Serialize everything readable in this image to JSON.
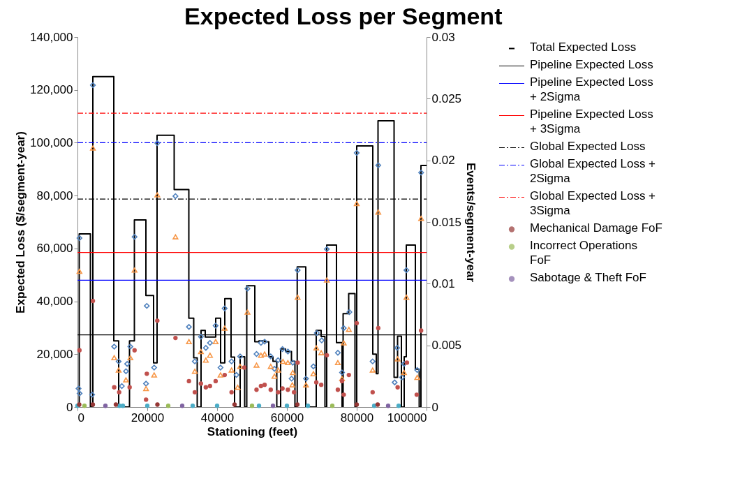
{
  "chart_data": {
    "type": "step",
    "title": "Expected Loss per Segment",
    "xlabel": "Stationing (feet)",
    "ylabel": "Expected Loss ($/segment-year)",
    "y2label": "Events/segment-year",
    "xlim": [
      0,
      100000
    ],
    "xticks": [
      0,
      20000,
      40000,
      60000,
      80000,
      100000
    ],
    "ylim": [
      0,
      140000
    ],
    "yticks": [
      0,
      {
        "value": 20000,
        "label": "20,000"
      },
      {
        "value": 40000,
        "label": "40,000"
      },
      {
        "value": 60000,
        "label": "60,000"
      },
      {
        "value": 80000,
        "label": "80,000"
      },
      {
        "value": 100000,
        "label": "100,000"
      },
      {
        "value": 120000,
        "label": "120,000"
      },
      {
        "value": 140000,
        "label": "140,000"
      }
    ],
    "y2lim": [
      0,
      0.03
    ],
    "y2ticks": [
      0,
      0.005,
      0.01,
      0.015,
      0.02,
      0.025,
      0.03
    ],
    "legend": "right",
    "series": [
      {
        "name": "Total Expected Loss",
        "color": "#000000",
        "x": [
          0,
          500,
          3700,
          4400,
          10400,
          11800,
          14900,
          16300,
          19600,
          21800,
          22800,
          27700,
          31900,
          33300,
          34300,
          35400,
          36600,
          39600,
          41000,
          42200,
          44000,
          45000,
          46600,
          47900,
          48500,
          50800,
          52000,
          53600,
          54800,
          56000,
          57100,
          58200,
          59600,
          61300,
          62300,
          62950,
          65400,
          68400,
          69800,
          70900,
          71400,
          74200,
          75800,
          76100,
          77700,
          79500,
          80000,
          84600,
          85600,
          86100,
          90700,
          91700,
          92800,
          93600,
          94200,
          96800,
          97900,
          98400,
          100000
        ],
        "values": [
          0,
          65500,
          0,
          125000,
          25000,
          0,
          25000,
          70800,
          42200,
          16700,
          102800,
          82300,
          33600,
          18600,
          0,
          29000,
          26500,
          33600,
          16700,
          41000,
          18900,
          0,
          19000,
          0,
          45900,
          24700,
          25000,
          24700,
          19000,
          17300,
          0,
          22000,
          21000,
          17300,
          0,
          53000,
          0,
          29000,
          26700,
          0,
          61300,
          24400,
          0,
          35300,
          42900,
          0,
          98800,
          20000,
          12600,
          108300,
          11200,
          26800,
          0,
          19000,
          61300,
          14300,
          0,
          91400,
          91400
        ]
      },
      {
        "name": "Pipeline Expected Loss",
        "type": "line",
        "color": "#000000",
        "line_style": "solid",
        "x": [
          0,
          100000
        ],
        "values": [
          27300,
          27300
        ]
      },
      {
        "name": "Pipeline Expected Loss + 2Sigma",
        "type": "line",
        "color": "#0000ff",
        "line_style": "solid",
        "x": [
          0,
          100000
        ],
        "values": [
          48000,
          48000
        ]
      },
      {
        "name": "Pipeline Expected Loss + 3Sigma",
        "type": "line",
        "color": "#ff0000",
        "line_style": "solid",
        "x": [
          0,
          100000
        ],
        "values": [
          58500,
          58500
        ]
      },
      {
        "name": "Global Expected Loss",
        "type": "line",
        "color": "#000000",
        "line_style": "dashed",
        "x": [
          0,
          100000
        ],
        "values": [
          78700,
          78700
        ]
      },
      {
        "name": "Global Expected Loss + 2Sigma",
        "type": "line",
        "color": "#0000ff",
        "line_style": "dashed",
        "x": [
          0,
          100000
        ],
        "values": [
          100000,
          100000
        ]
      },
      {
        "name": "Global Expected Loss + 3Sigma",
        "type": "line",
        "color": "#ff0000",
        "line_style": "dashed",
        "x": [
          0,
          100000
        ],
        "values": [
          111200,
          111200
        ]
      },
      {
        "type": "scatter",
        "axis": "y2",
        "marker": "circle",
        "color": "#4bacc6",
        "x": [
          0,
          12000,
          13000,
          20000,
          33000,
          40000,
          52000,
          60000,
          66000,
          85000,
          92000
        ],
        "values": [
          0.0001,
          0.0001,
          0.0001,
          0.0001,
          0.0001,
          0.0001,
          0.0001,
          0.0001,
          0.0001,
          0.0001,
          0.0001
        ]
      },
      {
        "type": "scatter",
        "axis": "y2",
        "marker": "diamond",
        "color": "#4f81bd",
        "x": [
          300,
          600,
          4200,
          560,
          4420,
          10520,
          11790,
          12700,
          13890,
          14240,
          15150,
          16350,
          19640,
          19860,
          21960,
          22870,
          28070,
          31930,
          33610,
          35360,
          36770,
          37960,
          39580,
          40980,
          42170,
          44140,
          45540,
          46590,
          48700,
          51290,
          52560,
          53610,
          55360,
          56420,
          57470,
          58730,
          60280,
          61330,
          61680,
          63080,
          65470,
          67580,
          68560,
          69960,
          71440,
          74590,
          75790,
          76280,
          77890,
          80000,
          84560,
          86170,
          90870,
          91580,
          92980,
          93540,
          94240,
          97330,
          98450
        ],
        "values": [
          0.0015,
          0.0011,
          0.001,
          0.0137,
          0.0261,
          0.0049,
          0.0037,
          0.0017,
          0.0029,
          0.0035,
          0.0049,
          0.0138,
          0.0019,
          0.0082,
          0.0032,
          0.0214,
          0.0171,
          0.0065,
          0.0037,
          0.0057,
          0.0048,
          0.0052,
          0.0066,
          0.0032,
          0.008,
          0.0037,
          0.0026,
          0.0041,
          0.0096,
          0.0043,
          0.0052,
          0.0053,
          0.0041,
          0.0031,
          0.0038,
          0.0047,
          0.0045,
          0.0023,
          0.0036,
          0.0111,
          0.0023,
          0.0033,
          0.006,
          0.0054,
          0.0128,
          0.0044,
          0.0028,
          0.0064,
          0.0077,
          0.0206,
          0.0037,
          0.0196,
          0.002,
          0.0048,
          0.0024,
          0.0035,
          0.0111,
          0.003,
          0.019
        ]
      },
      {
        "type": "scatter",
        "axis": "y2",
        "marker": "triangle",
        "color": "#f79646",
        "x": [
          560,
          4420,
          10520,
          11790,
          13890,
          15150,
          16350,
          19640,
          21960,
          22870,
          28070,
          31930,
          33610,
          35360,
          36770,
          37960,
          39580,
          40980,
          42170,
          44140,
          45890,
          46590,
          48700,
          51290,
          52560,
          53610,
          55360,
          56420,
          57470,
          58880,
          60280,
          61540,
          61680,
          63080,
          65470,
          67580,
          68420,
          69820,
          71440,
          74590,
          75790,
          76280,
          77750,
          80000,
          84560,
          86170,
          91720,
          93540,
          94240,
          97330,
          98450
        ],
        "values": [
          0.011,
          0.021,
          0.004,
          0.003,
          0.0022,
          0.004,
          0.0111,
          0.0015,
          0.0026,
          0.0172,
          0.0138,
          0.0053,
          0.0029,
          0.0045,
          0.0038,
          0.0042,
          0.0053,
          0.0026,
          0.0064,
          0.003,
          0.0016,
          0.0033,
          0.0077,
          0.0034,
          0.0042,
          0.0043,
          0.0033,
          0.0025,
          0.003,
          0.0037,
          0.0036,
          0.0018,
          0.0028,
          0.0089,
          0.0018,
          0.0027,
          0.0048,
          0.0044,
          0.0103,
          0.0036,
          0.0023,
          0.0052,
          0.0063,
          0.0165,
          0.003,
          0.0158,
          0.0039,
          0.0028,
          0.0089,
          0.0024,
          0.0153
        ]
      },
      {
        "type": "scatter",
        "axis": "y2",
        "marker": "circle",
        "color": "#c0504d",
        "x": [
          560,
          4420,
          10520,
          11940,
          14940,
          16350,
          19640,
          19860,
          22870,
          28070,
          31930,
          33610,
          35360,
          36770,
          37960,
          39580,
          42170,
          44140,
          47790,
          51290,
          52560,
          53610,
          55360,
          57470,
          58730,
          60280,
          62030,
          63080,
          68420,
          69820,
          71440,
          74590,
          75790,
          76280,
          77750,
          80000,
          84560,
          86170,
          91720,
          94380,
          97190,
          98450
        ],
        "values": [
          0.0046,
          0.0086,
          0.0016,
          0.0012,
          0.0016,
          0.0046,
          0.0006,
          0.0027,
          0.007,
          0.0056,
          0.0021,
          0.0012,
          0.0019,
          0.0016,
          0.0017,
          0.0021,
          0.0026,
          0.0012,
          0.0032,
          0.0014,
          0.0017,
          0.0018,
          0.0014,
          0.0012,
          0.0015,
          0.0014,
          0.0012,
          0.0036,
          0.002,
          0.0018,
          0.0042,
          0.0014,
          0.0021,
          0.001,
          0.0026,
          0.0068,
          0.0012,
          0.0064,
          0.0016,
          0.0036,
          0.001,
          0.0062
        ]
      },
      {
        "name": "Mechanical Damage FoF",
        "type": "scatter",
        "axis": "y2",
        "marker": "circle",
        "color": "#953735",
        "x": [
          500,
          4400,
          11000,
          22900,
          45000,
          63000,
          80000,
          86000
        ],
        "values": [
          0.0002,
          0.0002,
          0.0002,
          0.0002,
          0.0002,
          0.0002,
          0.0002,
          0.0002
        ]
      },
      {
        "name": "Incorrect Operations FoF",
        "type": "scatter",
        "axis": "y2",
        "marker": "circle",
        "color": "#9bbb59",
        "x": [
          2000,
          26000,
          50000,
          73000
        ],
        "values": [
          0.0001,
          0.0001,
          0.0001,
          0.0001
        ]
      },
      {
        "name": "Sabotage & Theft FoF",
        "type": "scatter",
        "axis": "y2",
        "marker": "circle",
        "color": "#8064a2",
        "x": [
          8000,
          30000,
          56000,
          89000
        ],
        "values": [
          0.0001,
          0.0001,
          0.0001,
          0.0001
        ]
      }
    ]
  }
}
